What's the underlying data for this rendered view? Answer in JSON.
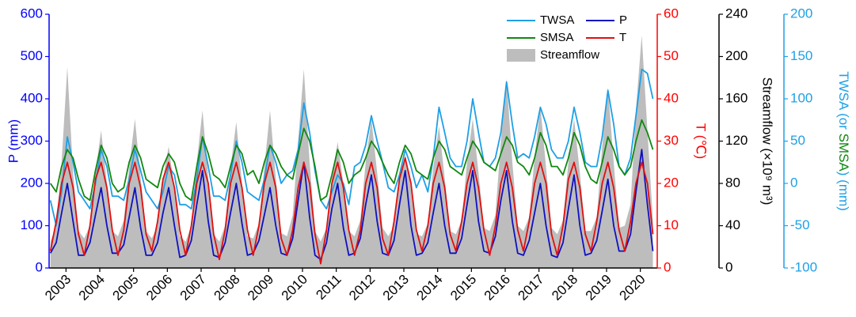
{
  "chart_data": {
    "type": "line",
    "ylabel": "P (mm)",
    "y2label": "T (℃)",
    "y3label": "Streamflow (×10⁹ m³)",
    "y4label": [
      "TWSA (or ",
      "SMSA",
      ") (mm)"
    ],
    "xlim": [
      2003,
      2021
    ],
    "xticks": [
      {
        "value": 2003.5,
        "label": "2003"
      },
      {
        "value": 2004.5,
        "label": "2004"
      },
      {
        "value": 2005.5,
        "label": "2005"
      },
      {
        "value": 2006.5,
        "label": "2006"
      },
      {
        "value": 2007.5,
        "label": "2007"
      },
      {
        "value": 2008.5,
        "label": "2008"
      },
      {
        "value": 2009.5,
        "label": "2009"
      },
      {
        "value": 2010.5,
        "label": "2010"
      },
      {
        "value": 2011.5,
        "label": "2011"
      },
      {
        "value": 2012.5,
        "label": "2012"
      },
      {
        "value": 2013.5,
        "label": "2013"
      },
      {
        "value": 2014.5,
        "label": "2014"
      },
      {
        "value": 2015.5,
        "label": "2015"
      },
      {
        "value": 2016.5,
        "label": "2016"
      },
      {
        "value": 2017.5,
        "label": "2017"
      },
      {
        "value": 2018.5,
        "label": "2018"
      },
      {
        "value": 2019.5,
        "label": "2019"
      },
      {
        "value": 2020.5,
        "label": "2020"
      }
    ],
    "ylim": [
      0,
      600
    ],
    "yticks": [
      0,
      100,
      200,
      300,
      400,
      500,
      600
    ],
    "y2lim": [
      0,
      60
    ],
    "y2ticks": [
      0,
      10,
      20,
      30,
      40,
      50,
      60
    ],
    "y3lim": [
      0,
      240
    ],
    "y3ticks": [
      0,
      40,
      80,
      120,
      160,
      200,
      240
    ],
    "y4lim": [
      -100,
      200
    ],
    "y4ticks": [
      -100,
      -50,
      0,
      50,
      100,
      150,
      200
    ],
    "axis_colors": {
      "y": "#0000ff",
      "y2": "#ff0000",
      "y3": "#000000",
      "y4": "#1ea0e6"
    },
    "legend": "upper right",
    "x": [
      2003.04,
      2003.21,
      2003.37,
      2003.54,
      2003.71,
      2003.87,
      2004.04,
      2004.21,
      2004.37,
      2004.54,
      2004.71,
      2004.87,
      2005.04,
      2005.21,
      2005.37,
      2005.54,
      2005.71,
      2005.87,
      2006.04,
      2006.21,
      2006.37,
      2006.54,
      2006.71,
      2006.87,
      2007.04,
      2007.21,
      2007.37,
      2007.54,
      2007.71,
      2007.87,
      2008.04,
      2008.21,
      2008.37,
      2008.54,
      2008.71,
      2008.87,
      2009.04,
      2009.21,
      2009.37,
      2009.54,
      2009.71,
      2009.87,
      2010.04,
      2010.21,
      2010.37,
      2010.54,
      2010.71,
      2010.87,
      2011.04,
      2011.21,
      2011.37,
      2011.54,
      2011.71,
      2011.87,
      2012.04,
      2012.21,
      2012.37,
      2012.54,
      2012.71,
      2012.87,
      2013.04,
      2013.21,
      2013.37,
      2013.54,
      2013.71,
      2013.87,
      2014.04,
      2014.21,
      2014.37,
      2014.54,
      2014.71,
      2014.87,
      2015.04,
      2015.21,
      2015.37,
      2015.54,
      2015.71,
      2015.87,
      2016.04,
      2016.21,
      2016.37,
      2016.54,
      2016.71,
      2016.87,
      2017.04,
      2017.21,
      2017.37,
      2017.54,
      2017.71,
      2017.87,
      2018.04,
      2018.21,
      2018.37,
      2018.54,
      2018.71,
      2018.87,
      2019.04,
      2019.21,
      2019.37,
      2019.54,
      2019.71,
      2019.87,
      2020.04,
      2020.21,
      2020.37,
      2020.54,
      2020.71,
      2020.87
    ],
    "series": [
      {
        "name": "TWSA",
        "type": "line",
        "axis": "y4",
        "color": "#1ea0e6",
        "values": [
          -20,
          -50,
          -10,
          55,
          25,
          -10,
          -20,
          -30,
          0,
          40,
          20,
          -15,
          -15,
          -20,
          5,
          40,
          15,
          -10,
          -20,
          -30,
          -10,
          20,
          10,
          -25,
          -25,
          -30,
          5,
          55,
          20,
          -15,
          -15,
          -20,
          10,
          50,
          25,
          -10,
          -15,
          -20,
          5,
          45,
          25,
          0,
          10,
          15,
          40,
          95,
          60,
          15,
          -20,
          -30,
          -10,
          10,
          0,
          -25,
          20,
          25,
          45,
          80,
          50,
          25,
          -5,
          -10,
          10,
          40,
          20,
          -5,
          10,
          -10,
          30,
          90,
          60,
          30,
          20,
          20,
          50,
          100,
          60,
          25,
          20,
          30,
          60,
          120,
          70,
          30,
          35,
          30,
          55,
          90,
          70,
          40,
          30,
          30,
          50,
          90,
          60,
          25,
          20,
          20,
          55,
          110,
          70,
          20,
          10,
          30,
          80,
          135,
          130,
          100
        ]
      },
      {
        "name": "P",
        "type": "line",
        "axis": "y",
        "color": "#1010c0",
        "values": [
          35,
          60,
          130,
          200,
          110,
          30,
          30,
          60,
          125,
          190,
          100,
          35,
          35,
          55,
          120,
          190,
          95,
          30,
          30,
          60,
          130,
          190,
          100,
          25,
          30,
          65,
          150,
          230,
          110,
          30,
          25,
          60,
          130,
          200,
          105,
          30,
          35,
          65,
          125,
          190,
          100,
          35,
          30,
          70,
          160,
          250,
          120,
          30,
          20,
          60,
          140,
          200,
          95,
          30,
          35,
          70,
          150,
          220,
          110,
          35,
          30,
          65,
          150,
          230,
          100,
          30,
          35,
          60,
          130,
          200,
          100,
          35,
          35,
          70,
          150,
          230,
          110,
          40,
          35,
          75,
          160,
          230,
          110,
          35,
          30,
          65,
          130,
          200,
          100,
          30,
          25,
          60,
          140,
          220,
          100,
          30,
          35,
          65,
          135,
          210,
          100,
          40,
          40,
          80,
          180,
          280,
          150,
          40
        ]
      },
      {
        "name": "SMSA",
        "type": "line",
        "axis": "y4",
        "color": "#118811",
        "values": [
          0,
          -10,
          20,
          40,
          30,
          5,
          -15,
          -20,
          15,
          45,
          30,
          0,
          -10,
          -5,
          25,
          45,
          30,
          5,
          0,
          -5,
          20,
          35,
          25,
          0,
          -15,
          -20,
          20,
          55,
          35,
          10,
          5,
          -5,
          20,
          45,
          35,
          10,
          15,
          0,
          25,
          45,
          35,
          20,
          10,
          5,
          35,
          65,
          50,
          20,
          -20,
          -15,
          10,
          40,
          25,
          0,
          10,
          15,
          30,
          50,
          40,
          25,
          10,
          0,
          25,
          45,
          35,
          15,
          10,
          5,
          30,
          50,
          40,
          20,
          15,
          10,
          30,
          50,
          40,
          25,
          20,
          15,
          35,
          55,
          45,
          25,
          20,
          10,
          30,
          60,
          45,
          20,
          20,
          10,
          30,
          60,
          45,
          20,
          5,
          0,
          25,
          55,
          40,
          20,
          10,
          20,
          50,
          75,
          60,
          40
        ]
      },
      {
        "name": "T",
        "type": "line",
        "axis": "y2",
        "color": "#e01010",
        "values": [
          4,
          11,
          20,
          25,
          19,
          8,
          3,
          10,
          21,
          25,
          19,
          9,
          3,
          9,
          20,
          25,
          19,
          8,
          4,
          11,
          21,
          25,
          19,
          9,
          3,
          10,
          20,
          25,
          20,
          8,
          2,
          9,
          20,
          25,
          19,
          9,
          3,
          10,
          20,
          25,
          19,
          7,
          3,
          9,
          19,
          25,
          20,
          8,
          1,
          9,
          20,
          25,
          19,
          9,
          3,
          9,
          20,
          25,
          19,
          7,
          3,
          11,
          21,
          26,
          20,
          9,
          4,
          10,
          20,
          25,
          19,
          8,
          4,
          11,
          20,
          25,
          19,
          9,
          3,
          10,
          20,
          25,
          19,
          9,
          4,
          11,
          20,
          25,
          20,
          8,
          3,
          10,
          21,
          25,
          19,
          8,
          4,
          11,
          20,
          25,
          19,
          9,
          4,
          11,
          20,
          25,
          20,
          8
        ]
      },
      {
        "name": "Streamflow",
        "type": "area",
        "axis": "y3",
        "color": "#bdbdbd",
        "values": [
          25,
          40,
          100,
          190,
          90,
          35,
          28,
          40,
          90,
          130,
          80,
          35,
          30,
          45,
          95,
          141,
          85,
          35,
          28,
          40,
          85,
          115,
          75,
          30,
          25,
          40,
          100,
          149,
          85,
          32,
          25,
          40,
          95,
          138,
          80,
          30,
          28,
          42,
          95,
          149,
          85,
          33,
          30,
          50,
          120,
          188,
          100,
          35,
          25,
          38,
          85,
          119,
          80,
          35,
          30,
          45,
          100,
          141,
          90,
          38,
          30,
          40,
          80,
          108,
          75,
          32,
          30,
          42,
          95,
          134,
          85,
          35,
          32,
          45,
          100,
          141,
          90,
          38,
          35,
          50,
          120,
          179,
          100,
          40,
          35,
          48,
          105,
          153,
          95,
          38,
          32,
          45,
          100,
          141,
          90,
          35,
          35,
          48,
          115,
          171,
          100,
          38,
          40,
          60,
          150,
          220,
          130,
          45
        ]
      }
    ]
  }
}
